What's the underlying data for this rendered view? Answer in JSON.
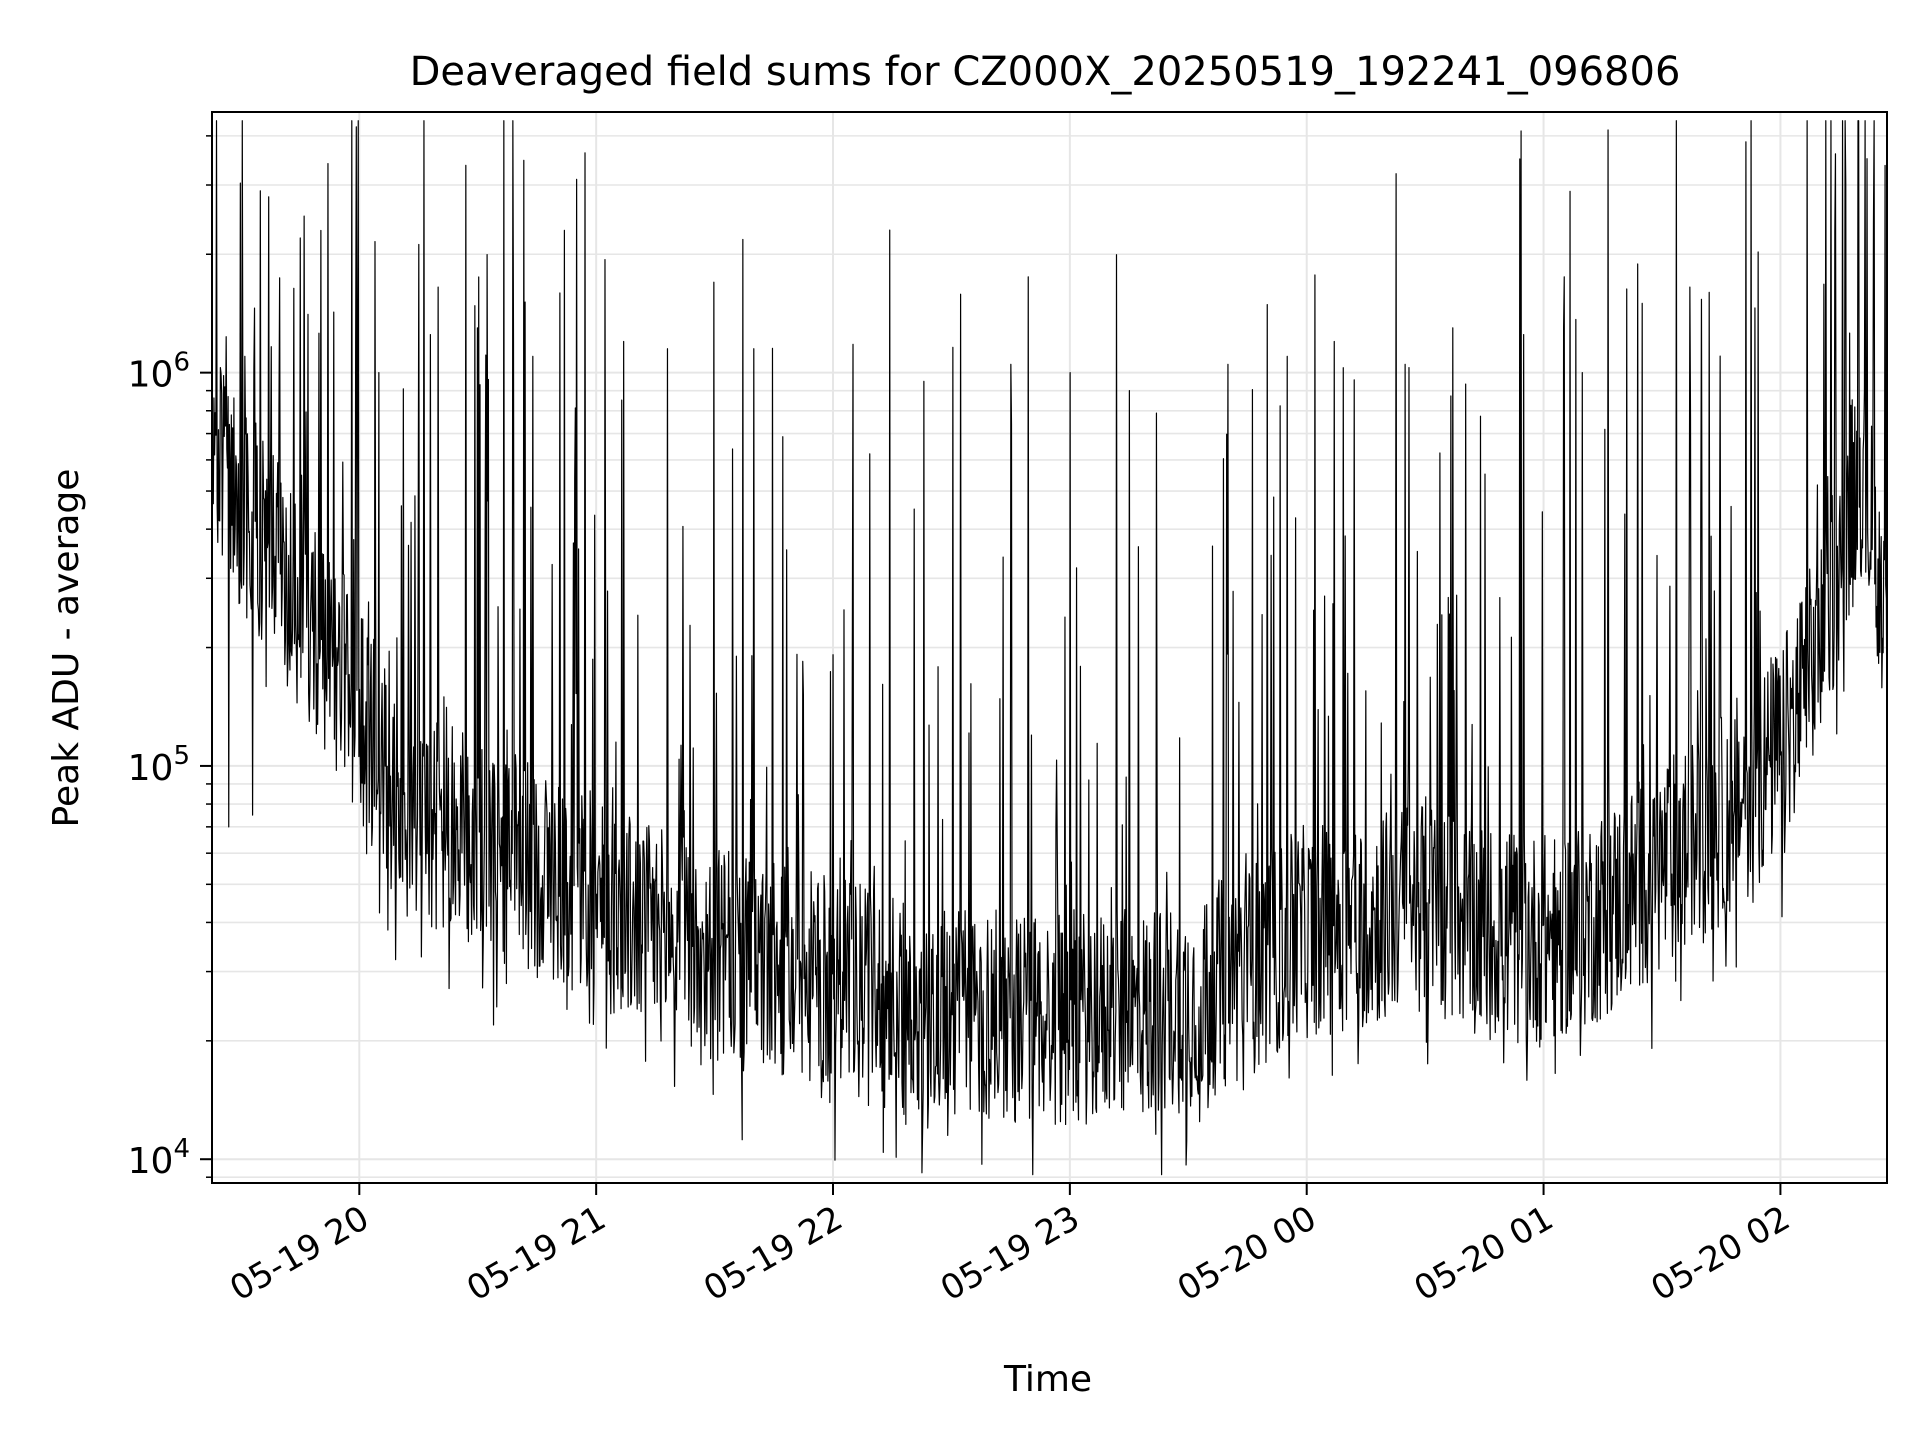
{
  "chart_data": {
    "type": "line",
    "title": "Deaveraged field sums for CZ000X_20250519_192241_096806",
    "xlabel": "Time",
    "ylabel": "Peak ADU - average",
    "yscale": "log",
    "ylim": [
      8700,
      4600000
    ],
    "xlim": [
      "2025-05-19 19:22:41",
      "2025-05-20 02:27:00"
    ],
    "grid": true,
    "legend": "none",
    "colors": {
      "line": "#000000",
      "grid": "#e6e6e6",
      "axes": "#000000"
    },
    "y_ticks": [
      {
        "value": 10000,
        "base": "10",
        "exp": "4"
      },
      {
        "value": 100000,
        "base": "10",
        "exp": "5"
      },
      {
        "value": 1000000,
        "base": "10",
        "exp": "6"
      }
    ],
    "x_ticks": [
      {
        "value": "2025-05-19 20:00",
        "label": "05-19 20"
      },
      {
        "value": "2025-05-19 21:00",
        "label": "05-19 21"
      },
      {
        "value": "2025-05-19 22:00",
        "label": "05-19 22"
      },
      {
        "value": "2025-05-19 23:00",
        "label": "05-19 23"
      },
      {
        "value": "2025-05-20 00:00",
        "label": "05-20 00"
      },
      {
        "value": "2025-05-20 01:00",
        "label": "05-20 01"
      },
      {
        "value": "2025-05-20 02:00",
        "label": "05-20 02"
      }
    ],
    "series": [
      {
        "x": [
          "2025-05-19 19:22:41",
          "2025-05-19 19:30",
          "2025-05-19 19:35",
          "2025-05-19 19:40",
          "2025-05-19 19:45",
          "2025-05-19 19:50",
          "2025-05-19 19:55",
          "2025-05-19 20:00",
          "2025-05-19 20:05",
          "2025-05-19 20:10",
          "2025-05-19 20:20",
          "2025-05-19 20:30",
          "2025-05-19 20:40",
          "2025-05-19 20:50",
          "2025-05-19 21:00",
          "2025-05-19 21:15",
          "2025-05-19 21:30",
          "2025-05-19 21:45",
          "2025-05-19 22:00",
          "2025-05-19 22:15",
          "2025-05-19 22:30",
          "2025-05-19 22:45",
          "2025-05-19 23:00",
          "2025-05-19 23:15",
          "2025-05-19 23:30",
          "2025-05-19 23:45",
          "2025-05-20 00:00",
          "2025-05-20 00:15",
          "2025-05-20 00:30",
          "2025-05-20 00:45",
          "2025-05-20 01:00",
          "2025-05-20 01:15",
          "2025-05-20 01:30",
          "2025-05-20 01:45",
          "2025-05-20 02:00",
          "2025-05-20 02:10",
          "2025-05-20 02:20",
          "2025-05-20 02:27"
        ],
        "baseline": [
          600000,
          450000,
          380000,
          320000,
          260000,
          210000,
          170000,
          140000,
          105000,
          75000,
          70000,
          62000,
          57000,
          52000,
          45000,
          38000,
          33000,
          30000,
          28000,
          25000,
          24000,
          23000,
          23000,
          23000,
          25000,
          30000,
          38000,
          40000,
          45000,
          38000,
          36000,
          42000,
          55000,
          72000,
          110000,
          200000,
          600000,
          250000
        ],
        "peaks": [
          {
            "x": "2025-05-19 19:26",
            "y": 920000
          },
          {
            "x": "2025-05-19 19:31",
            "y": 1100000
          },
          {
            "x": "2025-05-19 19:35",
            "y": 2900000
          },
          {
            "x": "2025-05-19 19:37",
            "y": 2800000
          },
          {
            "x": "2025-05-19 19:45",
            "y": 2200000
          },
          {
            "x": "2025-05-19 19:46",
            "y": 2500000
          },
          {
            "x": "2025-05-19 19:59",
            "y": 1200000
          },
          {
            "x": "2025-05-19 20:05",
            "y": 1000000
          },
          {
            "x": "2025-05-19 20:18",
            "y": 1250000
          },
          {
            "x": "2025-05-19 20:20",
            "y": 1650000
          },
          {
            "x": "2025-05-19 20:30",
            "y": 1300000
          },
          {
            "x": "2025-05-19 20:44",
            "y": 1100000
          },
          {
            "x": "2025-05-19 20:52",
            "y": 2300000
          },
          {
            "x": "2025-05-19 20:55",
            "y": 3100000
          },
          {
            "x": "2025-05-19 21:07",
            "y": 1200000
          },
          {
            "x": "2025-05-19 21:18",
            "y": 1150000
          },
          {
            "x": "2025-05-19 21:40",
            "y": 1150000
          },
          {
            "x": "2025-05-19 22:05",
            "y": 1180000
          },
          {
            "x": "2025-05-19 22:23",
            "y": 950000
          },
          {
            "x": "2025-05-19 22:45",
            "y": 1050000
          },
          {
            "x": "2025-05-19 23:00",
            "y": 1000000
          },
          {
            "x": "2025-05-19 23:15",
            "y": 900000
          },
          {
            "x": "2025-05-19 23:40",
            "y": 1050000
          },
          {
            "x": "2025-05-19 23:55",
            "y": 1100000
          },
          {
            "x": "2025-05-20 00:07",
            "y": 1200000
          },
          {
            "x": "2025-05-20 00:25",
            "y": 1050000
          },
          {
            "x": "2025-05-20 00:37",
            "y": 1300000
          },
          {
            "x": "2025-05-20 00:55",
            "y": 1250000
          },
          {
            "x": "2025-05-20 01:05",
            "y": 1300000
          },
          {
            "x": "2025-05-20 01:25",
            "y": 1500000
          },
          {
            "x": "2025-05-20 01:37",
            "y": 1650000
          },
          {
            "x": "2025-05-20 01:42",
            "y": 1600000
          },
          {
            "x": "2025-05-20 01:53",
            "y": 1450000
          },
          {
            "x": "2025-05-20 02:14",
            "y": 3600000
          },
          {
            "x": "2025-05-20 02:22",
            "y": 3500000
          }
        ],
        "dips": [
          {
            "x": "2025-05-19 19:27",
            "y": 70000
          },
          {
            "x": "2025-05-19 19:33",
            "y": 75000
          },
          {
            "x": "2025-05-19 21:35",
            "y": 20000
          },
          {
            "x": "2025-05-19 22:18",
            "y": 13000
          },
          {
            "x": "2025-05-19 22:24",
            "y": 12000
          },
          {
            "x": "2025-05-19 22:29",
            "y": 11500
          },
          {
            "x": "2025-05-19 23:10",
            "y": 13500
          },
          {
            "x": "2025-05-19 23:20",
            "y": 13500
          },
          {
            "x": "2025-05-20 00:13",
            "y": 17500
          },
          {
            "x": "2025-05-20 01:53",
            "y": 45000
          }
        ]
      }
    ]
  }
}
